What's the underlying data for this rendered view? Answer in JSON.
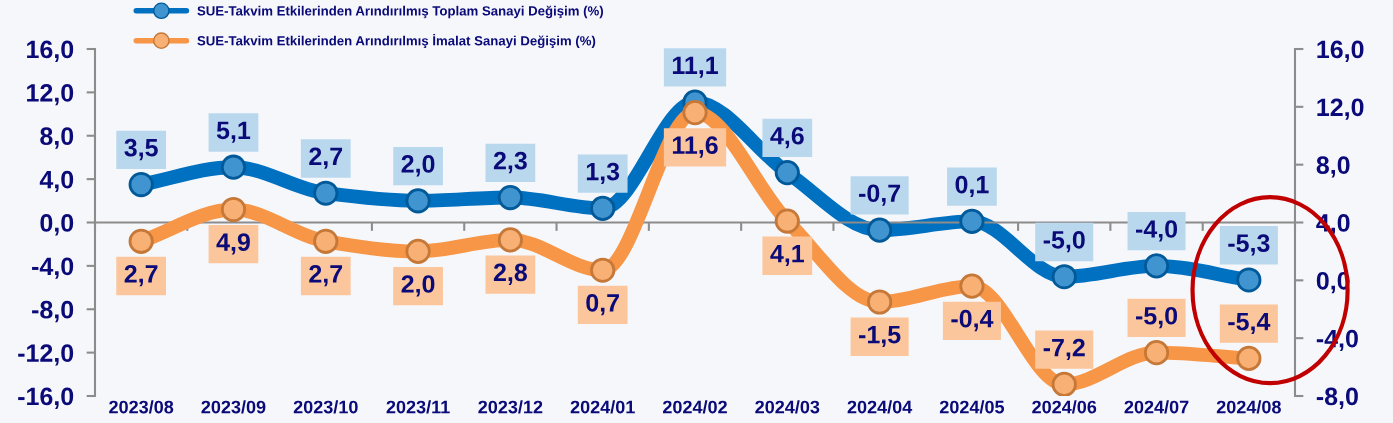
{
  "chart_data": {
    "type": "line",
    "categories": [
      "2023/08",
      "2023/09",
      "2023/10",
      "2023/11",
      "2023/12",
      "2024/01",
      "2024/02",
      "2024/03",
      "2024/04",
      "2024/05",
      "2024/06",
      "2024/07",
      "2024/08"
    ],
    "series": [
      {
        "name": "SUE-Takvim Etkilerinden Arındırılmış Toplam Sanayi Değişim (%)",
        "color": "#0070c0",
        "values": [
          3.5,
          5.1,
          2.7,
          2.0,
          2.3,
          1.3,
          11.1,
          4.6,
          -0.7,
          0.1,
          -5.0,
          -4.0,
          -5.3
        ],
        "value_labels": [
          "3,5",
          "5,1",
          "2,7",
          "2,0",
          "2,3",
          "1,3",
          "11,1",
          "4,6",
          "-0,7",
          "0,1",
          "-5,0",
          "-4,0",
          "-5,3"
        ]
      },
      {
        "name": "SUE-Takvim Etkilerinden Arındırılmış İmalat Sanayi Değişim (%)",
        "color": "#f79646",
        "axis": "y2",
        "values": [
          2.7,
          4.9,
          2.7,
          2.0,
          2.8,
          0.7,
          11.6,
          4.1,
          -1.5,
          -0.4,
          -7.2,
          -5.0,
          -5.4
        ],
        "value_labels": [
          "2,7",
          "4,9",
          "2,7",
          "2,0",
          "2,8",
          "0,7",
          "11,6",
          "4,1",
          "-1,5",
          "-0,4",
          "-7,2",
          "-5,0",
          "-5,4"
        ]
      }
    ],
    "ylim": [
      -16,
      16
    ],
    "yticks": [
      {
        "value": 16,
        "label": "16,0"
      },
      {
        "value": 12,
        "label": "12,0"
      },
      {
        "value": 8,
        "label": "8,0"
      },
      {
        "value": 4,
        "label": "4,0"
      },
      {
        "value": 0,
        "label": "0,0"
      },
      {
        "value": -4,
        "label": "-4,0"
      },
      {
        "value": -8,
        "label": "-8,0"
      },
      {
        "value": -12,
        "label": "-12,0"
      },
      {
        "value": -16,
        "label": "-16,0"
      }
    ],
    "y2lim": [
      -8,
      16
    ],
    "y2ticks": [
      {
        "value": 16,
        "label": "16,0"
      },
      {
        "value": 12,
        "label": "12,0"
      },
      {
        "value": 8,
        "label": "8,0"
      },
      {
        "value": 4,
        "label": "4,0"
      },
      {
        "value": 0,
        "label": "0,0"
      },
      {
        "value": -4,
        "label": "-4,0"
      },
      {
        "value": -8,
        "label": "-8,0"
      }
    ],
    "legend": "top left",
    "marker": "circle"
  }
}
